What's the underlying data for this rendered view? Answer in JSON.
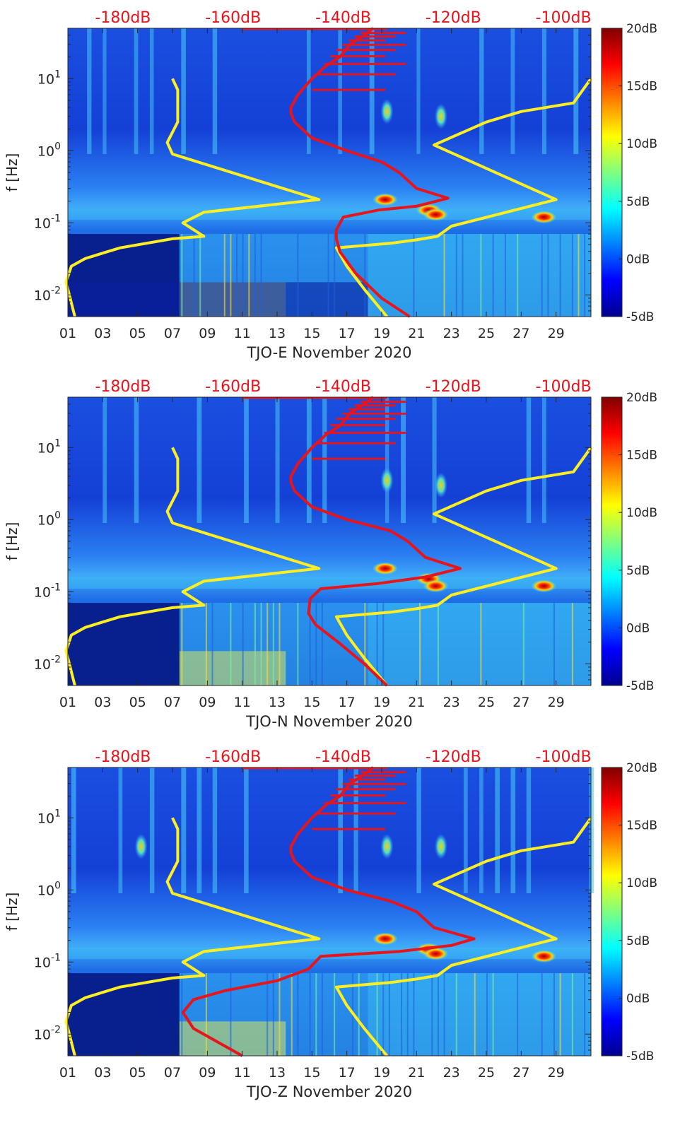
{
  "chart_data": [
    {
      "type": "heatmap",
      "xlabel": "TJO-E November 2020",
      "ylabel": "f [Hz]",
      "x_ticks": [
        "01",
        "03",
        "05",
        "07",
        "09",
        "11",
        "13",
        "15",
        "17",
        "19",
        "21",
        "23",
        "25",
        "27",
        "29"
      ],
      "x_range_days": [
        1,
        31
      ],
      "y_scale": "log",
      "y_range_hz": [
        0.005,
        50
      ],
      "y_ticks": [
        {
          "base": "10",
          "exp": "-2",
          "value": 0.01
        },
        {
          "base": "10",
          "exp": "-1",
          "value": 0.1
        },
        {
          "base": "10",
          "exp": "0",
          "value": 1
        },
        {
          "base": "10",
          "exp": "1",
          "value": 10
        }
      ],
      "top_axis_labels": [
        "-180dB",
        "-160dB",
        "-140dB",
        "-120dB",
        "-100dB"
      ],
      "top_axis_range_db": [
        -190,
        -95
      ],
      "colorbar": {
        "ticks": [
          "20dB",
          "15dB",
          "10dB",
          "5dB",
          "0dB",
          "-5dB"
        ],
        "range_db": [
          -5,
          20
        ],
        "colormap": "jet"
      },
      "series": [
        {
          "color": "#ffee22",
          "points": [
            [
              1.4,
              0.005
            ],
            [
              0.9,
              0.015
            ],
            [
              1.2,
              0.025
            ],
            [
              2.0,
              0.032
            ],
            [
              3.0,
              0.038
            ],
            [
              4.0,
              0.045
            ],
            [
              7.0,
              0.06
            ],
            [
              8.8,
              0.065
            ],
            [
              7.6,
              0.1
            ],
            [
              8.8,
              0.14
            ],
            [
              15.4,
              0.21
            ],
            [
              11.0,
              0.45
            ],
            [
              7.0,
              0.9
            ],
            [
              6.7,
              1.3
            ],
            [
              7.3,
              2.5
            ],
            [
              7.3,
              7.0
            ],
            [
              7.0,
              10.0
            ]
          ]
        },
        {
          "color": "#ffee22",
          "points": [
            [
              19.3,
              0.005
            ],
            [
              18.0,
              0.012
            ],
            [
              17.0,
              0.025
            ],
            [
              16.4,
              0.045
            ],
            [
              19.5,
              0.052
            ],
            [
              21.0,
              0.058
            ],
            [
              22.2,
              0.065
            ],
            [
              23.0,
              0.09
            ],
            [
              29.0,
              0.21
            ],
            [
              22.0,
              1.2
            ],
            [
              25.0,
              2.5
            ],
            [
              27.0,
              3.5
            ],
            [
              30.0,
              4.6
            ],
            [
              31.0,
              10.0
            ]
          ]
        },
        {
          "color": "#e8141c",
          "points": [
            [
              20.6,
              0.005
            ],
            [
              19.0,
              0.009
            ],
            [
              17.5,
              0.02
            ],
            [
              16.6,
              0.04
            ],
            [
              16.4,
              0.06
            ],
            [
              16.4,
              0.08
            ],
            [
              16.8,
              0.12
            ],
            [
              18.8,
              0.15
            ],
            [
              21.0,
              0.17
            ],
            [
              22.8,
              0.22
            ],
            [
              21.0,
              0.3
            ],
            [
              20.0,
              0.5
            ],
            [
              19.0,
              0.7
            ],
            [
              17.0,
              1.0
            ],
            [
              15.0,
              1.5
            ],
            [
              14.0,
              2.5
            ],
            [
              13.8,
              3.3
            ],
            [
              13.8,
              4.0
            ],
            [
              14.2,
              6.0
            ],
            [
              15.0,
              10.0
            ],
            [
              15.8,
              15.0
            ],
            [
              16.6,
              20.0
            ],
            [
              17.2,
              30.0
            ],
            [
              18.0,
              40.0
            ],
            [
              18.5,
              50.0
            ]
          ]
        }
      ],
      "hotspots": [
        [
          19.2,
          0.21
        ],
        [
          21.7,
          0.15
        ],
        [
          22.1,
          0.13
        ],
        [
          28.3,
          0.12
        ],
        [
          22.4,
          3.0
        ],
        [
          19.3,
          3.5
        ]
      ]
    },
    {
      "type": "heatmap",
      "xlabel": "TJO-N November 2020",
      "ylabel": "f [Hz]",
      "x_ticks": [
        "01",
        "03",
        "05",
        "07",
        "09",
        "11",
        "13",
        "15",
        "17",
        "19",
        "21",
        "23",
        "25",
        "27",
        "29"
      ],
      "x_range_days": [
        1,
        31
      ],
      "y_scale": "log",
      "y_range_hz": [
        0.005,
        50
      ],
      "y_ticks": [
        {
          "base": "10",
          "exp": "-2",
          "value": 0.01
        },
        {
          "base": "10",
          "exp": "-1",
          "value": 0.1
        },
        {
          "base": "10",
          "exp": "0",
          "value": 1
        },
        {
          "base": "10",
          "exp": "1",
          "value": 10
        }
      ],
      "top_axis_labels": [
        "-180dB",
        "-160dB",
        "-140dB",
        "-120dB",
        "-100dB"
      ],
      "top_axis_range_db": [
        -190,
        -95
      ],
      "colorbar": {
        "ticks": [
          "20dB",
          "15dB",
          "10dB",
          "5dB",
          "0dB",
          "-5dB"
        ],
        "range_db": [
          -5,
          20
        ],
        "colormap": "jet"
      },
      "series": [
        {
          "color": "#ffee22",
          "points": [
            [
              1.4,
              0.005
            ],
            [
              0.9,
              0.015
            ],
            [
              1.2,
              0.025
            ],
            [
              2.0,
              0.032
            ],
            [
              3.0,
              0.038
            ],
            [
              4.0,
              0.045
            ],
            [
              7.0,
              0.06
            ],
            [
              8.8,
              0.065
            ],
            [
              7.6,
              0.1
            ],
            [
              8.8,
              0.14
            ],
            [
              15.4,
              0.21
            ],
            [
              11.0,
              0.45
            ],
            [
              7.0,
              0.9
            ],
            [
              6.7,
              1.3
            ],
            [
              7.3,
              2.5
            ],
            [
              7.3,
              7.0
            ],
            [
              7.0,
              10.0
            ]
          ]
        },
        {
          "color": "#ffee22",
          "points": [
            [
              19.3,
              0.005
            ],
            [
              18.0,
              0.012
            ],
            [
              17.0,
              0.025
            ],
            [
              16.4,
              0.045
            ],
            [
              19.5,
              0.052
            ],
            [
              21.0,
              0.058
            ],
            [
              22.2,
              0.065
            ],
            [
              23.0,
              0.09
            ],
            [
              29.0,
              0.21
            ],
            [
              22.0,
              1.2
            ],
            [
              25.0,
              2.5
            ],
            [
              27.0,
              3.5
            ],
            [
              30.0,
              4.6
            ],
            [
              31.0,
              10.0
            ]
          ]
        },
        {
          "color": "#e8141c",
          "points": [
            [
              19.3,
              0.005
            ],
            [
              18.0,
              0.01
            ],
            [
              16.5,
              0.02
            ],
            [
              15.2,
              0.035
            ],
            [
              14.8,
              0.05
            ],
            [
              14.9,
              0.08
            ],
            [
              15.5,
              0.11
            ],
            [
              18.8,
              0.13
            ],
            [
              21.5,
              0.16
            ],
            [
              23.5,
              0.21
            ],
            [
              21.5,
              0.3
            ],
            [
              20.5,
              0.5
            ],
            [
              19.5,
              0.7
            ],
            [
              17.0,
              1.0
            ],
            [
              15.0,
              1.5
            ],
            [
              14.0,
              2.5
            ],
            [
              13.8,
              3.3
            ],
            [
              13.8,
              4.0
            ],
            [
              14.2,
              6.0
            ],
            [
              15.0,
              10.0
            ],
            [
              15.8,
              15.0
            ],
            [
              16.6,
              20.0
            ],
            [
              17.2,
              30.0
            ],
            [
              18.0,
              40.0
            ],
            [
              18.5,
              50.0
            ]
          ]
        }
      ],
      "hotspots": [
        [
          19.2,
          0.21
        ],
        [
          21.7,
          0.15
        ],
        [
          22.1,
          0.12
        ],
        [
          28.3,
          0.12
        ],
        [
          22.4,
          3.0
        ],
        [
          19.3,
          3.5
        ]
      ]
    },
    {
      "type": "heatmap",
      "xlabel": "TJO-Z November 2020",
      "ylabel": "f [Hz]",
      "x_ticks": [
        "01",
        "03",
        "05",
        "07",
        "09",
        "11",
        "13",
        "15",
        "17",
        "19",
        "21",
        "23",
        "25",
        "27",
        "29"
      ],
      "x_range_days": [
        1,
        31
      ],
      "y_scale": "log",
      "y_range_hz": [
        0.005,
        50
      ],
      "y_ticks": [
        {
          "base": "10",
          "exp": "-2",
          "value": 0.01
        },
        {
          "base": "10",
          "exp": "-1",
          "value": 0.1
        },
        {
          "base": "10",
          "exp": "0",
          "value": 1
        },
        {
          "base": "10",
          "exp": "1",
          "value": 10
        }
      ],
      "top_axis_labels": [
        "-180dB",
        "-160dB",
        "-140dB",
        "-120dB",
        "-100dB"
      ],
      "top_axis_range_db": [
        -190,
        -95
      ],
      "colorbar": {
        "ticks": [
          "20dB",
          "15dB",
          "10dB",
          "5dB",
          "0dB",
          "-5dB"
        ],
        "range_db": [
          -5,
          20
        ],
        "colormap": "jet"
      },
      "series": [
        {
          "color": "#ffee22",
          "points": [
            [
              1.4,
              0.005
            ],
            [
              0.9,
              0.015
            ],
            [
              1.2,
              0.025
            ],
            [
              2.0,
              0.032
            ],
            [
              3.0,
              0.038
            ],
            [
              4.0,
              0.045
            ],
            [
              7.0,
              0.06
            ],
            [
              8.8,
              0.065
            ],
            [
              7.6,
              0.1
            ],
            [
              8.8,
              0.14
            ],
            [
              15.4,
              0.21
            ],
            [
              11.0,
              0.45
            ],
            [
              7.0,
              0.9
            ],
            [
              6.7,
              1.3
            ],
            [
              7.3,
              2.5
            ],
            [
              7.3,
              7.0
            ],
            [
              7.0,
              10.0
            ]
          ]
        },
        {
          "color": "#ffee22",
          "points": [
            [
              19.3,
              0.005
            ],
            [
              18.0,
              0.012
            ],
            [
              17.0,
              0.025
            ],
            [
              16.4,
              0.045
            ],
            [
              19.5,
              0.052
            ],
            [
              21.0,
              0.058
            ],
            [
              22.2,
              0.065
            ],
            [
              23.0,
              0.09
            ],
            [
              29.0,
              0.21
            ],
            [
              22.0,
              1.2
            ],
            [
              25.0,
              2.5
            ],
            [
              27.0,
              3.5
            ],
            [
              30.0,
              4.6
            ],
            [
              31.0,
              10.0
            ]
          ]
        },
        {
          "color": "#e8141c",
          "points": [
            [
              11.0,
              0.005
            ],
            [
              9.5,
              0.008
            ],
            [
              8.2,
              0.012
            ],
            [
              7.6,
              0.02
            ],
            [
              8.2,
              0.03
            ],
            [
              10.0,
              0.04
            ],
            [
              13.0,
              0.055
            ],
            [
              14.8,
              0.08
            ],
            [
              15.5,
              0.12
            ],
            [
              20.0,
              0.14
            ],
            [
              23.0,
              0.17
            ],
            [
              24.3,
              0.21
            ],
            [
              22.0,
              0.3
            ],
            [
              21.0,
              0.5
            ],
            [
              19.5,
              0.7
            ],
            [
              17.0,
              1.0
            ],
            [
              15.0,
              1.5
            ],
            [
              14.0,
              2.5
            ],
            [
              13.8,
              3.3
            ],
            [
              13.8,
              4.0
            ],
            [
              14.2,
              6.0
            ],
            [
              15.0,
              10.0
            ],
            [
              15.8,
              15.0
            ],
            [
              16.6,
              20.0
            ],
            [
              17.2,
              30.0
            ],
            [
              18.0,
              40.0
            ],
            [
              18.5,
              50.0
            ]
          ]
        }
      ],
      "hotspots": [
        [
          19.2,
          0.21
        ],
        [
          21.7,
          0.15
        ],
        [
          22.1,
          0.13
        ],
        [
          28.3,
          0.12
        ],
        [
          22.4,
          4.0
        ],
        [
          5.2,
          4.0
        ],
        [
          19.3,
          4.0
        ]
      ]
    }
  ]
}
